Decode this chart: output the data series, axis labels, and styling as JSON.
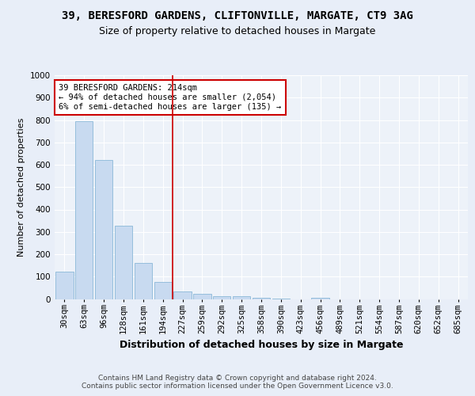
{
  "title1": "39, BERESFORD GARDENS, CLIFTONVILLE, MARGATE, CT9 3AG",
  "title2": "Size of property relative to detached houses in Margate",
  "xlabel": "Distribution of detached houses by size in Margate",
  "ylabel": "Number of detached properties",
  "categories": [
    "30sqm",
    "63sqm",
    "96sqm",
    "128sqm",
    "161sqm",
    "194sqm",
    "227sqm",
    "259sqm",
    "292sqm",
    "325sqm",
    "358sqm",
    "390sqm",
    "423sqm",
    "456sqm",
    "489sqm",
    "521sqm",
    "554sqm",
    "587sqm",
    "620sqm",
    "652sqm",
    "685sqm"
  ],
  "values": [
    122,
    795,
    620,
    328,
    162,
    75,
    32,
    22,
    12,
    12,
    5,
    2,
    0,
    5,
    0,
    0,
    0,
    0,
    0,
    0,
    0
  ],
  "bar_color": "#c8daf0",
  "bar_edge_color": "#8ab8d8",
  "vline_x_index": 5.5,
  "vline_color": "#cc0000",
  "annotation_box_text": "39 BERESFORD GARDENS: 214sqm\n← 94% of detached houses are smaller (2,054)\n6% of semi-detached houses are larger (135) →",
  "annotation_box_color": "#cc0000",
  "annotation_bg": "#ffffff",
  "ylim": [
    0,
    1000
  ],
  "yticks": [
    0,
    100,
    200,
    300,
    400,
    500,
    600,
    700,
    800,
    900,
    1000
  ],
  "footer": "Contains HM Land Registry data © Crown copyright and database right 2024.\nContains public sector information licensed under the Open Government Licence v3.0.",
  "bg_color": "#e8eef8",
  "plot_bg": "#edf2f9",
  "grid_color": "#ffffff",
  "title1_fontsize": 10,
  "title2_fontsize": 9,
  "xlabel_fontsize": 9,
  "ylabel_fontsize": 8,
  "tick_fontsize": 7.5,
  "footer_fontsize": 6.5
}
